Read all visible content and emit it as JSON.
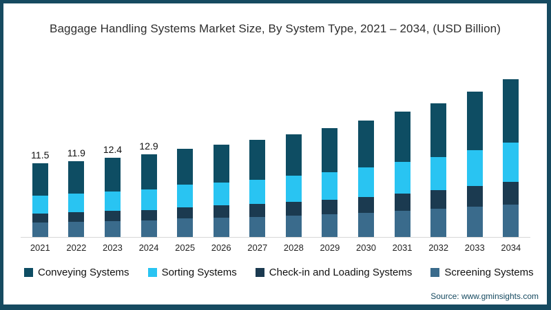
{
  "title": "Baggage Handling Systems Market Size, By System Type, 2021 – 2034, (USD Billion)",
  "source": "Source: www.gminsights.com",
  "colors": {
    "frame_border": "#164a60",
    "background": "#ffffff",
    "axis_line": "#d6d6d6",
    "conveying": "#0e4d63",
    "sorting": "#29c4f2",
    "checkin": "#1b3a50",
    "screening": "#3a6b8c"
  },
  "chart_data": {
    "type": "bar",
    "stacked": true,
    "unit": "USD Billion",
    "title": "Baggage Handling Systems Market Size, By System Type, 2021 – 2034, (USD Billion)",
    "xlabel": "",
    "ylabel": "",
    "grid": false,
    "legend_position": "bottom-left",
    "categories": [
      "2021",
      "2022",
      "2023",
      "2024",
      "2025",
      "2026",
      "2027",
      "2028",
      "2029",
      "2030",
      "2031",
      "2032",
      "2033",
      "2034"
    ],
    "series": [
      {
        "name": "Conveying Systems",
        "color": "#0e4d63",
        "values": [
          5.0,
          5.1,
          5.3,
          5.5,
          5.6,
          5.9,
          6.2,
          6.5,
          6.9,
          7.3,
          7.8,
          8.4,
          9.1,
          9.9
        ]
      },
      {
        "name": "Sorting Systems",
        "color": "#29c4f2",
        "values": [
          2.8,
          2.9,
          3.0,
          3.2,
          3.5,
          3.6,
          3.8,
          4.1,
          4.3,
          4.6,
          4.9,
          5.2,
          5.6,
          6.1
        ]
      },
      {
        "name": "Check-in and Loading Systems",
        "color": "#1b3a50",
        "values": [
          1.4,
          1.5,
          1.6,
          1.6,
          1.7,
          1.9,
          2.0,
          2.1,
          2.3,
          2.5,
          2.7,
          2.9,
          3.2,
          3.6
        ]
      },
      {
        "name": "Screening Systems",
        "color": "#3a6b8c",
        "values": [
          2.3,
          2.4,
          2.5,
          2.6,
          2.9,
          3.0,
          3.1,
          3.3,
          3.6,
          3.8,
          4.1,
          4.4,
          4.7,
          5.0
        ]
      }
    ],
    "totals": [
      11.5,
      11.9,
      12.4,
      12.9,
      13.7,
      14.4,
      15.1,
      16.0,
      17.1,
      18.2,
      19.5,
      20.9,
      22.6,
      24.6
    ],
    "bar_labels": [
      "11.5",
      "11.9",
      "12.4",
      "12.9",
      "",
      "",
      "",
      "",
      "",
      "",
      "",
      "",
      "",
      ""
    ]
  }
}
